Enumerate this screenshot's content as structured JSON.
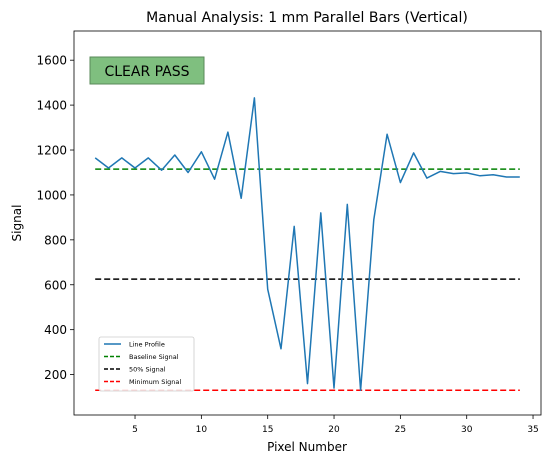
{
  "chart_data": {
    "type": "line",
    "title": "Manual Analysis: 1 mm Parallel Bars (Vertical)",
    "xlabel": "Pixel Number",
    "ylabel": "Signal",
    "xlim": [
      0.4,
      35.6
    ],
    "ylim": [
      20,
      1730
    ],
    "xticks": [
      5,
      10,
      15,
      20,
      25,
      30,
      35
    ],
    "yticks": [
      200,
      400,
      600,
      800,
      1000,
      1200,
      1400,
      1600
    ],
    "grid": false,
    "legend_position": "lower-left",
    "status_label": "CLEAR PASS",
    "status_color": "#7fbf7f",
    "series": [
      {
        "name": "Line Profile",
        "style": "solid",
        "color": "#1f77b4",
        "x": [
          2,
          3,
          4,
          5,
          6,
          7,
          8,
          9,
          10,
          11,
          12,
          13,
          14,
          15,
          16,
          17,
          18,
          19,
          20,
          21,
          22,
          23,
          24,
          25,
          26,
          27,
          28,
          29,
          30,
          31,
          32,
          33,
          34
        ],
        "values": [
          1165,
          1120,
          1165,
          1120,
          1165,
          1110,
          1178,
          1100,
          1192,
          1070,
          1280,
          985,
          1432,
          580,
          315,
          860,
          160,
          920,
          140,
          958,
          130,
          890,
          1270,
          1055,
          1187,
          1075,
          1105,
          1095,
          1098,
          1085,
          1090,
          1080,
          1080
        ]
      },
      {
        "name": "Baseline Signal",
        "style": "dashed",
        "color": "#008000",
        "x": [
          2,
          34
        ],
        "values": [
          1115,
          1115
        ]
      },
      {
        "name": "50% Signal",
        "style": "dashed",
        "color": "#000000",
        "x": [
          2,
          34
        ],
        "values": [
          625,
          625
        ]
      },
      {
        "name": "Minimum Signal",
        "style": "dashed",
        "color": "#ff0000",
        "x": [
          2,
          34
        ],
        "values": [
          130,
          130
        ]
      }
    ]
  }
}
